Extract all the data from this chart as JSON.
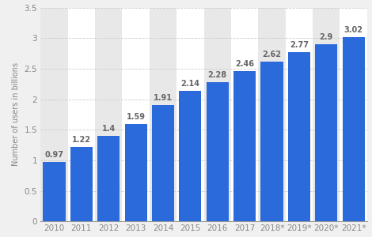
{
  "categories": [
    "2010",
    "2011",
    "2012",
    "2013",
    "2014",
    "2015",
    "2016",
    "2017",
    "2018*",
    "2019*",
    "2020*",
    "2021*"
  ],
  "values": [
    0.97,
    1.22,
    1.4,
    1.59,
    1.91,
    2.14,
    2.28,
    2.46,
    2.62,
    2.77,
    2.9,
    3.02
  ],
  "bar_color": "#2b6adb",
  "ylabel": "Number of users in billions",
  "ylim": [
    0,
    3.5
  ],
  "yticks": [
    0,
    0.5,
    1.0,
    1.5,
    2.0,
    2.5,
    3.0,
    3.5
  ],
  "background_color": "#f0f0f0",
  "plot_bg_color": "#ffffff",
  "col_band_color": "#e8e8e8",
  "label_color": "#666666",
  "label_fontsize": 7.0,
  "bar_width": 0.82,
  "grid_color": "#cccccc",
  "tick_label_color": "#888888",
  "tick_label_size": 7.5
}
